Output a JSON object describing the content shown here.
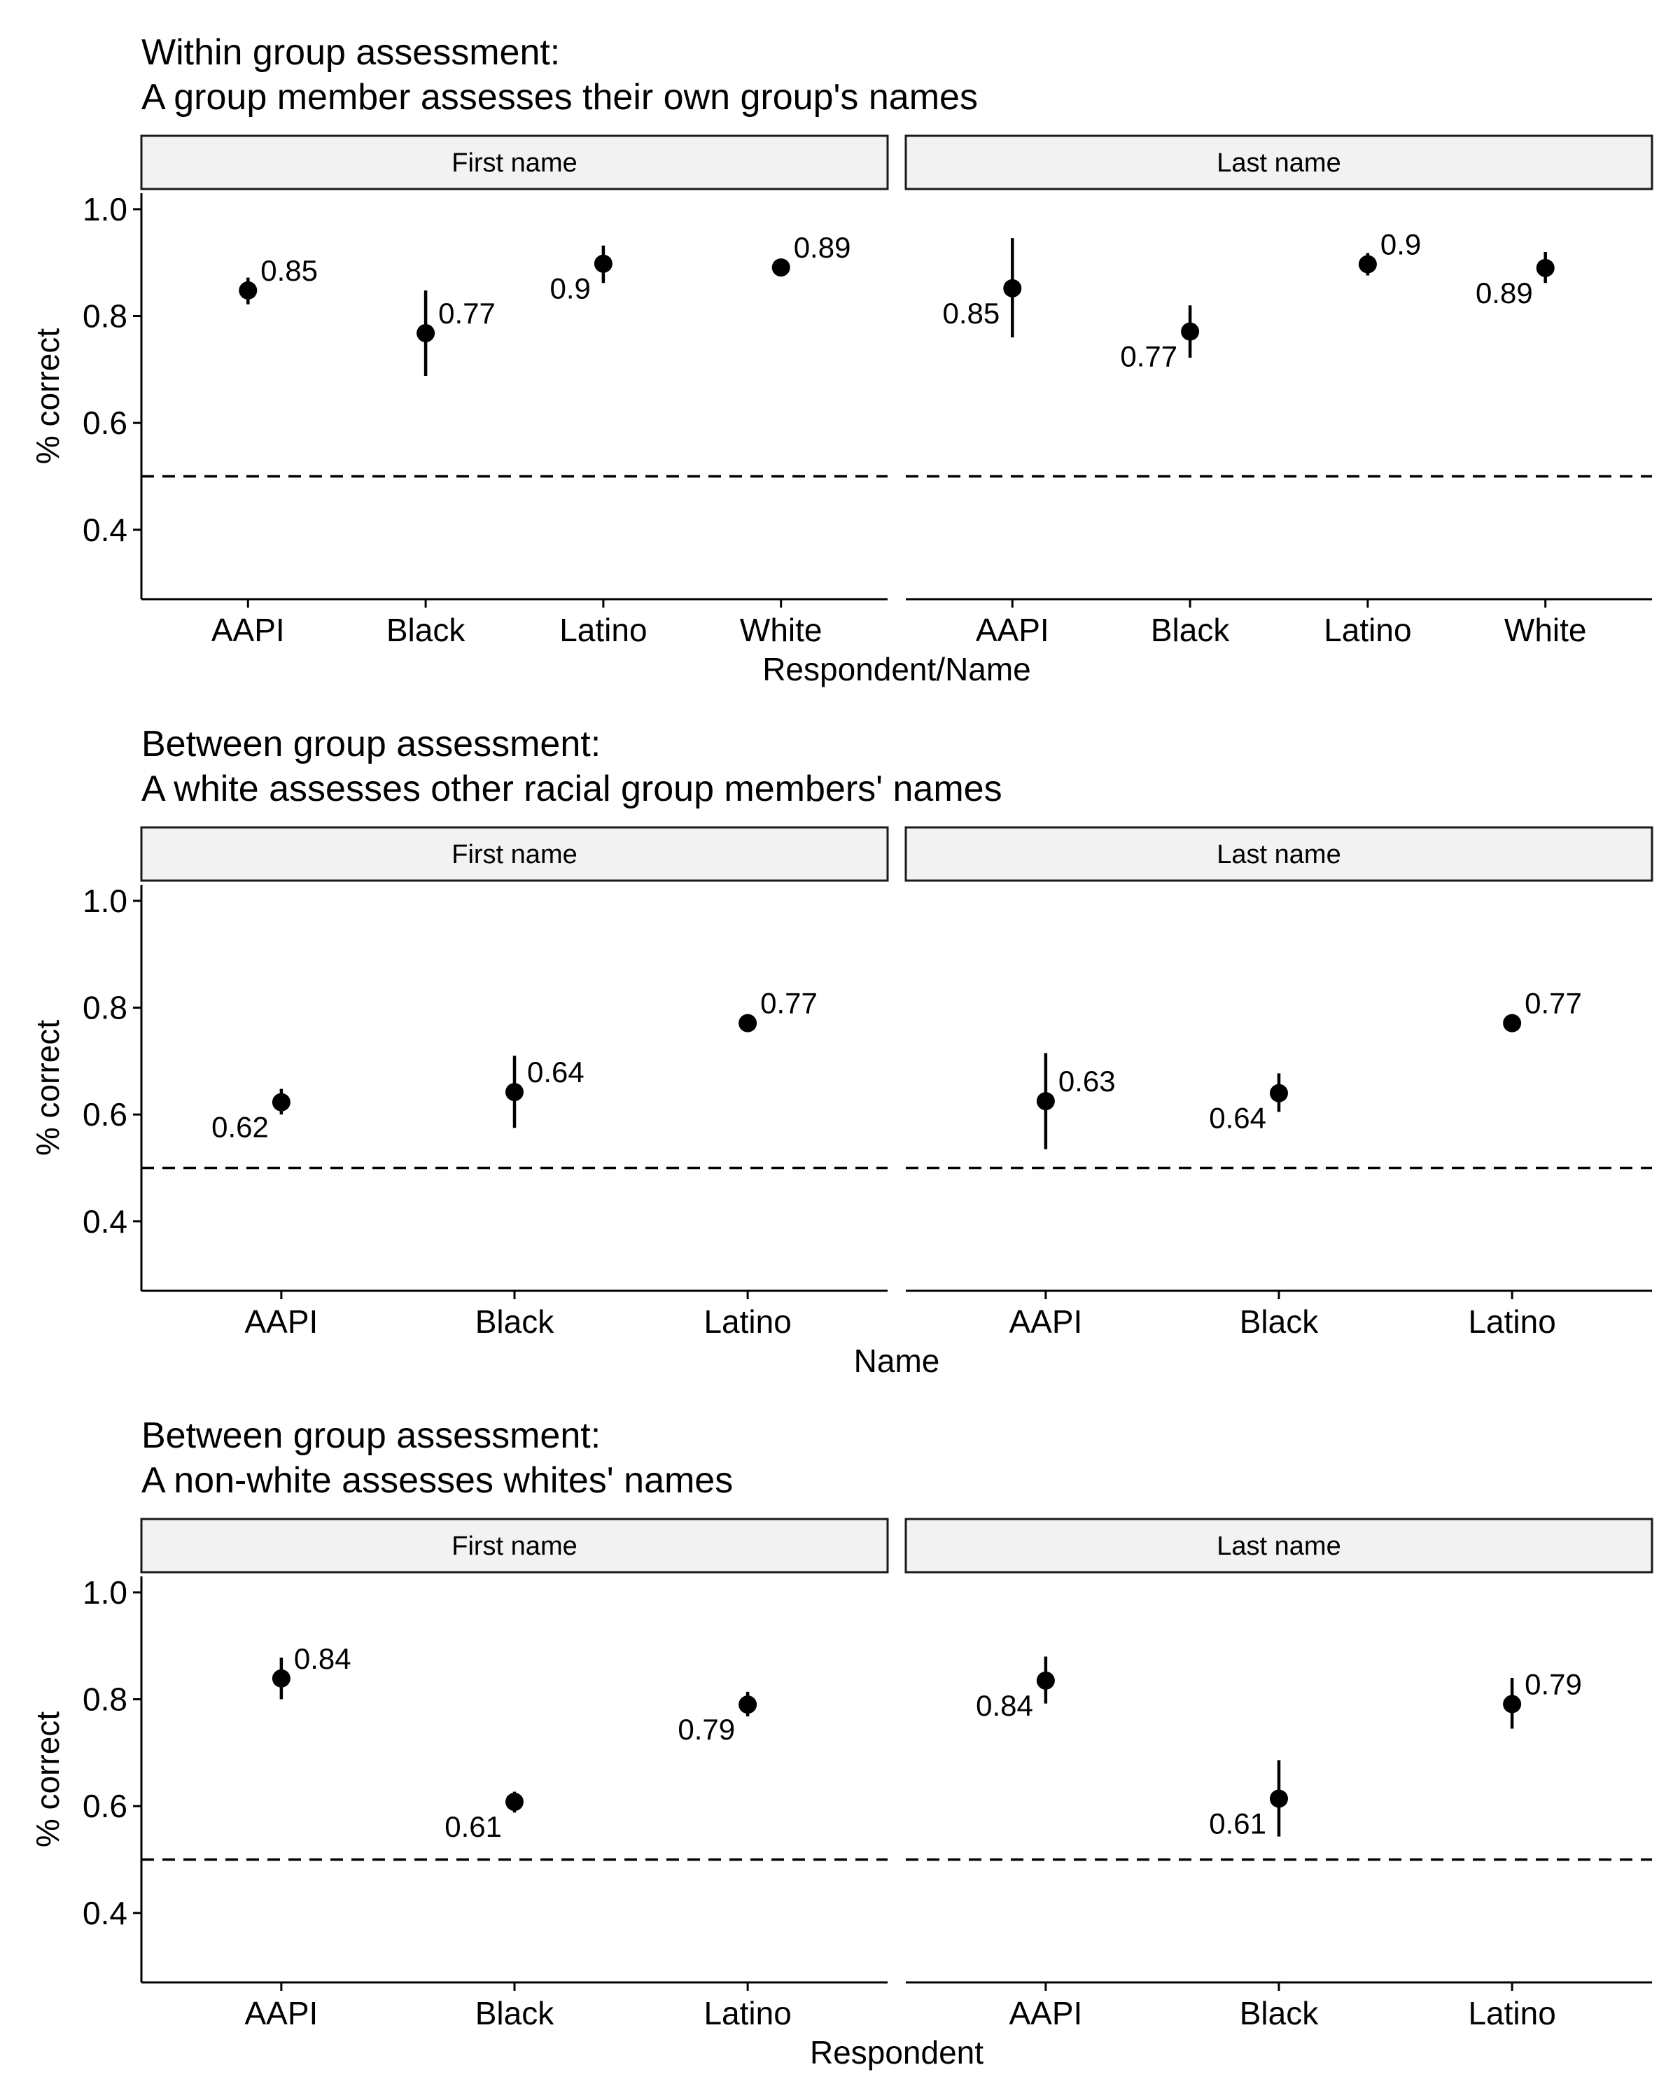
{
  "chart_data": [
    {
      "type": "scatter",
      "title_line1": "Within group assessment:",
      "title_line2": "A group member assesses their own group's names",
      "xlabel": "Respondent/Name",
      "ylabel": "% correct",
      "ylim": [
        0.27,
        1.03
      ],
      "yticks": [
        "0.4",
        "0.6",
        "0.8",
        "1.0"
      ],
      "reference_line": 0.5,
      "categories": [
        "AAPI",
        "Black",
        "Latino",
        "White"
      ],
      "panels": [
        {
          "name": "First name",
          "points": [
            {
              "category": "AAPI",
              "value": 0.848,
              "lo": 0.822,
              "hi": 0.872,
              "label": "0.85",
              "label_side": "right-above"
            },
            {
              "category": "Black",
              "value": 0.768,
              "lo": 0.688,
              "hi": 0.848,
              "label": "0.77",
              "label_side": "right-above"
            },
            {
              "category": "Latino",
              "value": 0.898,
              "lo": 0.862,
              "hi": 0.932,
              "label": "0.9",
              "label_side": "left-below"
            },
            {
              "category": "White",
              "value": 0.891,
              "lo": 0.882,
              "hi": 0.9,
              "label": "0.89",
              "label_side": "right-above"
            }
          ]
        },
        {
          "name": "Last name",
          "points": [
            {
              "category": "AAPI",
              "value": 0.852,
              "lo": 0.76,
              "hi": 0.946,
              "label": "0.85",
              "label_side": "left-below"
            },
            {
              "category": "Black",
              "value": 0.771,
              "lo": 0.722,
              "hi": 0.82,
              "label": "0.77",
              "label_side": "left-below"
            },
            {
              "category": "Latino",
              "value": 0.897,
              "lo": 0.876,
              "hi": 0.918,
              "label": "0.9",
              "label_side": "right-above"
            },
            {
              "category": "White",
              "value": 0.89,
              "lo": 0.862,
              "hi": 0.92,
              "label": "0.89",
              "label_side": "left-below"
            }
          ]
        }
      ]
    },
    {
      "type": "scatter",
      "title_line1": "Between group assessment:",
      "title_line2": "A white assesses other racial group members' names",
      "xlabel": "Name",
      "ylabel": "% correct",
      "ylim": [
        0.27,
        1.03
      ],
      "yticks": [
        "0.4",
        "0.6",
        "0.8",
        "1.0"
      ],
      "reference_line": 0.5,
      "categories": [
        "AAPI",
        "Black",
        "Latino"
      ],
      "panels": [
        {
          "name": "First name",
          "points": [
            {
              "category": "AAPI",
              "value": 0.623,
              "lo": 0.6,
              "hi": 0.648,
              "label": "0.62",
              "label_side": "left-below"
            },
            {
              "category": "Black",
              "value": 0.642,
              "lo": 0.575,
              "hi": 0.71,
              "label": "0.64",
              "label_side": "right-above"
            },
            {
              "category": "Latino",
              "value": 0.771,
              "lo": 0.76,
              "hi": 0.782,
              "label": "0.77",
              "label_side": "right-above"
            }
          ]
        },
        {
          "name": "Last name",
          "points": [
            {
              "category": "AAPI",
              "value": 0.625,
              "lo": 0.535,
              "hi": 0.715,
              "label": "0.63",
              "label_side": "right-above"
            },
            {
              "category": "Black",
              "value": 0.64,
              "lo": 0.605,
              "hi": 0.677,
              "label": "0.64",
              "label_side": "left-below"
            },
            {
              "category": "Latino",
              "value": 0.771,
              "lo": 0.76,
              "hi": 0.782,
              "label": "0.77",
              "label_side": "right-above"
            }
          ]
        }
      ]
    },
    {
      "type": "scatter",
      "title_line1": "Between group assessment:",
      "title_line2": "A non-white assesses whites' names",
      "xlabel": "Respondent",
      "ylabel": "% correct",
      "ylim": [
        0.27,
        1.03
      ],
      "yticks": [
        "0.4",
        "0.6",
        "0.8",
        "1.0"
      ],
      "reference_line": 0.5,
      "categories": [
        "AAPI",
        "Black",
        "Latino"
      ],
      "panels": [
        {
          "name": "First name",
          "points": [
            {
              "category": "AAPI",
              "value": 0.839,
              "lo": 0.8,
              "hi": 0.878,
              "label": "0.84",
              "label_side": "right-above"
            },
            {
              "category": "Black",
              "value": 0.608,
              "lo": 0.588,
              "hi": 0.627,
              "label": "0.61",
              "label_side": "left-below"
            },
            {
              "category": "Latino",
              "value": 0.79,
              "lo": 0.768,
              "hi": 0.814,
              "label": "0.79",
              "label_side": "left-below"
            }
          ]
        },
        {
          "name": "Last name",
          "points": [
            {
              "category": "AAPI",
              "value": 0.835,
              "lo": 0.792,
              "hi": 0.88,
              "label": "0.84",
              "label_side": "left-below"
            },
            {
              "category": "Black",
              "value": 0.614,
              "lo": 0.543,
              "hi": 0.686,
              "label": "0.61",
              "label_side": "left-below"
            },
            {
              "category": "Latino",
              "value": 0.791,
              "lo": 0.745,
              "hi": 0.84,
              "label": "0.79",
              "label_side": "right-above"
            }
          ]
        }
      ]
    }
  ]
}
